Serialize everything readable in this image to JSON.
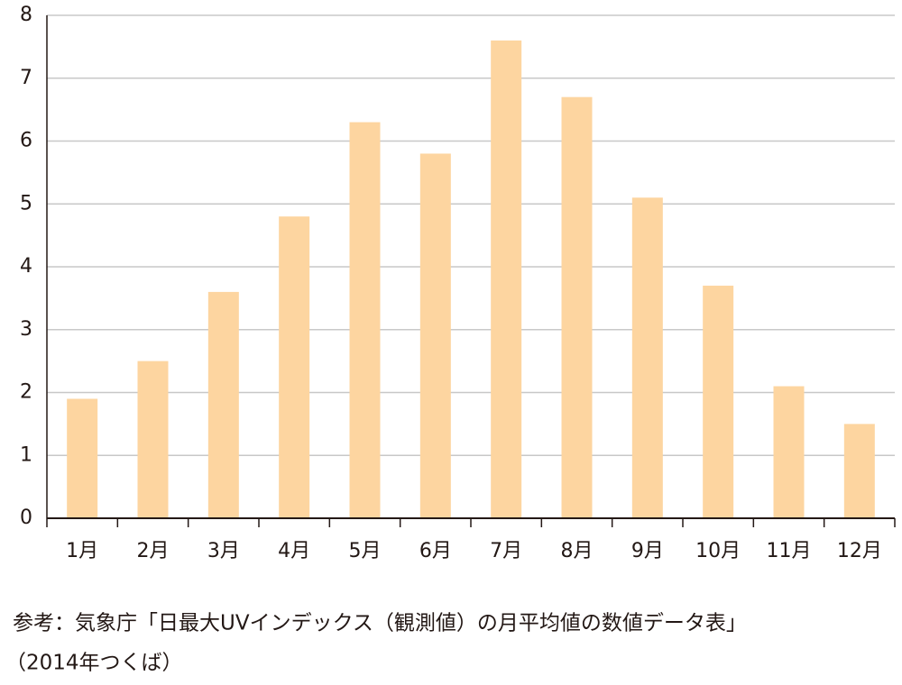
{
  "chart_data": {
    "type": "bar",
    "categories": [
      "1月",
      "2月",
      "3月",
      "4月",
      "5月",
      "6月",
      "7月",
      "8月",
      "9月",
      "10月",
      "11月",
      "12月"
    ],
    "values": [
      1.9,
      2.5,
      3.6,
      4.8,
      6.3,
      5.8,
      7.6,
      6.7,
      5.1,
      3.7,
      2.1,
      1.5
    ],
    "color": "#fdd5a0",
    "ylim": [
      0,
      8
    ],
    "yticks": [
      0,
      1,
      2,
      3,
      4,
      5,
      6,
      7,
      8
    ],
    "grid": true,
    "notes": [
      "参考：気象庁「日最大UVインデックス（観測値）の月平均値の数値データ表」",
      "（2014年つくば）"
    ]
  }
}
